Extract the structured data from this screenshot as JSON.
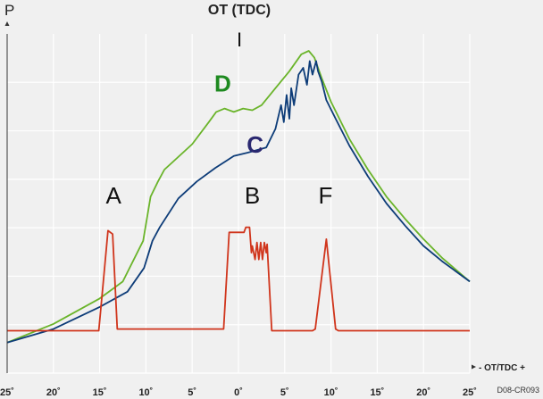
{
  "chart_data": {
    "type": "line",
    "title": "OT (TDC)",
    "ylabel": "P",
    "xlabel": "- OT/TDC +",
    "source_code": "D08-CR093",
    "tdc_marker": "I",
    "xlim": [
      -25,
      25
    ],
    "ylim": [
      0,
      100
    ],
    "grid": true,
    "x_ticks": [
      "25˚",
      "20˚",
      "15˚",
      "10˚",
      "5˚",
      "0˚",
      "5˚",
      "10˚",
      "15˚",
      "20˚",
      "25˚"
    ],
    "x_tick_values": [
      -25,
      -20,
      -15,
      -10,
      -5,
      0,
      5,
      10,
      15,
      20,
      25
    ],
    "series": [
      {
        "name": "D",
        "color": "#6ab42a",
        "label_color": "#1e8a20",
        "label_at": [
          -1.7,
          83
        ],
        "x": [
          -25,
          -20,
          -15,
          -12.5,
          -10.3,
          -9.5,
          -8.7,
          -8.0,
          -7.0,
          -5.0,
          -3.2,
          -2.4,
          -1.5,
          -0.5,
          0.5,
          1.5,
          2.5,
          4.0,
          5.5,
          6.8,
          7.6,
          8.2,
          9.0,
          10.0,
          12.0,
          14.0,
          16.0,
          18.0,
          20.0,
          22.0,
          25.0
        ],
        "y": [
          9,
          14.5,
          22,
          27,
          39,
          52,
          56.5,
          60,
          62.5,
          67.5,
          74,
          77,
          78,
          77,
          78,
          77.5,
          79,
          84,
          89,
          94,
          95,
          93,
          87,
          80,
          69,
          60,
          52,
          45.5,
          39.5,
          34,
          27
        ]
      },
      {
        "name": "C",
        "color": "#0d3c78",
        "label_color": "#2a2870",
        "label_at": [
          1.8,
          65
        ],
        "x": [
          -25,
          -20,
          -15,
          -12.0,
          -10.2,
          -9.3,
          -8.5,
          -6.5,
          -4.5,
          -2.5,
          -0.5,
          1.0,
          3.0,
          4.0,
          4.6,
          4.9,
          5.2,
          5.5,
          5.7,
          6.0,
          6.5,
          7.0,
          7.4,
          7.7,
          8.0,
          8.4,
          8.6,
          9.0,
          9.5,
          10.5,
          12.0,
          14.0,
          16.0,
          18.0,
          20.0,
          22.0,
          25.0
        ],
        "y": [
          9,
          13,
          19.5,
          24,
          31,
          39,
          43,
          51.5,
          56.5,
          60.5,
          64,
          65,
          66.5,
          72,
          79,
          74,
          82,
          75,
          84,
          79,
          88,
          90,
          85,
          92,
          88,
          92,
          89,
          86,
          80.5,
          75,
          67,
          58,
          50,
          43.5,
          37.5,
          33,
          27
        ]
      },
      {
        "name": "A B F",
        "color": "#d0351c",
        "x": [
          -25,
          -15.1,
          -14.6,
          -14.1,
          -13.6,
          -13.1,
          -10.0,
          -3.0,
          -1.6,
          -1.0,
          0.6,
          0.8,
          1.2,
          1.4,
          1.5,
          1.8,
          2.0,
          2.2,
          2.4,
          2.6,
          2.8,
          3.0,
          3.1,
          3.6,
          4.5,
          8.0,
          8.3,
          9.5,
          10.5,
          10.8,
          16.0,
          25.0
        ],
        "y": [
          12.5,
          12.5,
          27,
          42,
          41,
          13,
          13,
          13,
          13,
          41.5,
          41.5,
          43,
          43,
          35.5,
          37.5,
          33.5,
          38.5,
          33.5,
          38.5,
          33.5,
          38.5,
          35.5,
          38,
          12.5,
          12.5,
          12.5,
          13,
          39.5,
          13,
          12.5,
          12.5,
          12.5
        ]
      }
    ],
    "annotations": [
      {
        "text": "A",
        "x": -13.5,
        "y": 50,
        "color": "#111111"
      },
      {
        "text": "B",
        "x": 1.5,
        "y": 50,
        "color": "#111111"
      },
      {
        "text": "F",
        "x": 9.4,
        "y": 50,
        "color": "#111111"
      }
    ]
  }
}
